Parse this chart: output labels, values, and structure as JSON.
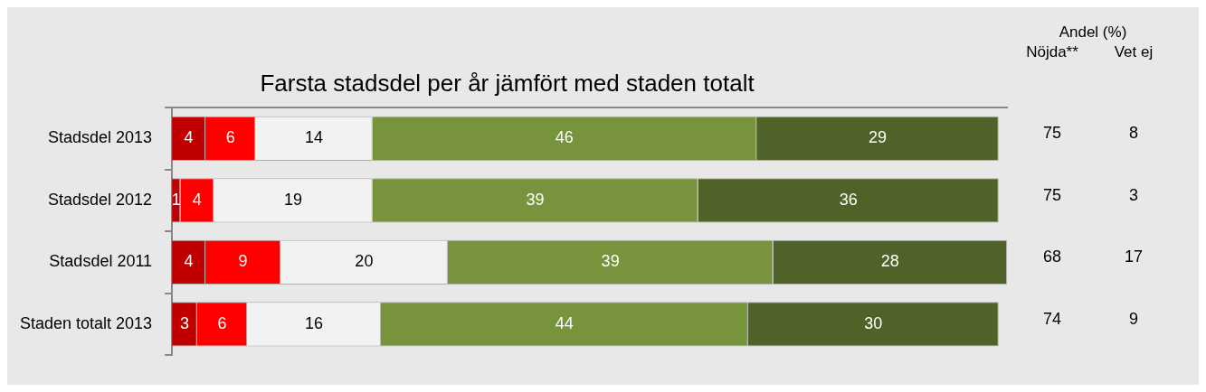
{
  "chart_data": {
    "type": "bar",
    "title": "Farsta stadsdel per år jämfört med staden totalt",
    "orientation": "horizontal",
    "stacked": true,
    "tick_labels": "y",
    "data_labels": true,
    "grid": false,
    "legend": false,
    "categories": [
      "Stadsdel 2013",
      "Stadsdel 2012",
      "Stadsdel 2011",
      "Staden totalt 2013"
    ],
    "series": [
      {
        "color": "#c00000",
        "values": [
          4,
          1,
          4,
          3
        ]
      },
      {
        "color": "#ff0000",
        "values": [
          6,
          4,
          9,
          6
        ]
      },
      {
        "color": "#f2f2f2",
        "values": [
          14,
          19,
          20,
          16
        ]
      },
      {
        "color": "#77933c",
        "values": [
          46,
          39,
          39,
          44
        ]
      },
      {
        "color": "#4f6228",
        "values": [
          29,
          36,
          28,
          30
        ]
      }
    ],
    "annotations": [
      "Andel (%)",
      "Nöjda**",
      "Vet ej",
      "75",
      "8",
      "75",
      "3",
      "68",
      "17",
      "74",
      "9"
    ]
  }
}
